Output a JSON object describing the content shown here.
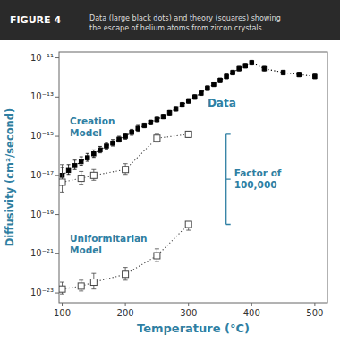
{
  "chart_data": {
    "type": "scatter",
    "title": "FIGURE 4",
    "subtitle": "Data (large black dots) and theory (squares) showing\nthe escape of helium atoms from zircon crystals.",
    "x_label": "Temperature (°C)",
    "y_label": "Diffusivity (cm²/second)",
    "annotations": [
      "Factor of\n100,000"
    ],
    "log": "y",
    "grid": false,
    "xlim": [
      95,
      520
    ],
    "ylim": [
      3.16228e-24,
      1.99526e-11
    ],
    "xticks": [
      100,
      200,
      300,
      400,
      500
    ],
    "yticks": [
      {
        "value": 1e-23,
        "label": "10⁻²³"
      },
      {
        "value": 1e-21,
        "label": "10⁻²¹"
      },
      {
        "value": 1e-19,
        "label": "10⁻¹⁹"
      },
      {
        "value": 1e-17,
        "label": "10⁻¹⁷"
      },
      {
        "value": 1e-15,
        "label": "10⁻¹⁵"
      },
      {
        "value": 1e-13,
        "label": "10⁻¹³"
      },
      {
        "value": 1e-11,
        "label": "10⁻¹¹"
      }
    ],
    "series": [
      {
        "name": "Data",
        "color": "#000000",
        "marker": "square",
        "line_style": "dotted",
        "x": [
          100,
          110,
          120,
          130,
          140,
          150,
          160,
          170,
          180,
          190,
          200,
          210,
          220,
          230,
          240,
          250,
          260,
          270,
          280,
          290,
          300,
          310,
          320,
          330,
          340,
          350,
          360,
          370,
          380,
          390,
          400,
          420,
          450,
          475,
          500
        ],
        "values": [
          1e-17,
          1.77828e-17,
          3.16228e-17,
          5.01187e-17,
          7.94328e-17,
          1.25893e-16,
          1.99526e-16,
          3.16228e-16,
          4.46684e-16,
          7.07946e-16,
          1e-15,
          1.58489e-15,
          2.51189e-15,
          3.54813e-15,
          5.01187e-15,
          7.07946e-15,
          1e-14,
          1.58489e-14,
          2.51189e-14,
          3.98107e-14,
          6.30957e-14,
          1e-13,
          1.58489e-13,
          2.81838e-13,
          4.46684e-13,
          7.07946e-13,
          1.12202e-12,
          1.77828e-12,
          2.81838e-12,
          3.98107e-12,
          5.62341e-12,
          2.81838e-12,
          1.77828e-12,
          1.41254e-12,
          1.12202e-12
        ],
        "errors_low": [
          4.3766e-18,
          6.5626e-18,
          1.167e-17,
          1.7006e-17,
          2.6952e-17,
          4.2716e-17,
          5.8272e-17,
          9.2356e-17,
          1.3046e-16,
          2.0676e-16,
          2.9205e-16,
          4.6287e-16,
          7.3361e-16,
          8.566e-16,
          1.21e-15,
          1.7091e-15,
          2.4142e-15,
          3.8263e-15,
          6.0643e-15,
          9.6112e-15,
          1.5233e-14,
          2.4142e-14,
          3.8263e-14,
          6.8042e-14,
          1.0784e-13,
          1.7091e-13,
          2.7088e-13,
          4.2932e-13,
          6.8042e-13,
          9.6112e-13,
          1.3576e-12,
          6.8042e-13,
          4.2932e-13,
          3.4102e-13,
          2.7088e-13
        ],
        "errors_high": [
          1.5119e-17,
          1.7699e-17,
          2.8633e-17,
          3.9006e-17,
          5.2393e-17,
          7.3634e-17,
          1.0247e-16,
          1.624e-16,
          2.294e-16,
          2.9205e-16,
          4.1254e-16,
          6.5383e-16,
          1.0363e-15,
          1.1292e-15,
          1.5951e-15,
          2.2531e-15,
          3.1826e-15,
          5.044e-15,
          7.9943e-15,
          1.267e-14,
          2.0081e-14,
          3.1826e-14,
          5.044e-14,
          8.9697e-14,
          1.4216e-13,
          2.2531e-13,
          3.5709e-13,
          5.6595e-13,
          8.9697e-13,
          1.267e-12,
          1.7897e-12,
          8.9697e-13,
          5.6595e-13,
          4.4955e-13,
          3.5709e-13
        ]
      },
      {
        "name": "Creation\nModel",
        "color": "#444444",
        "marker": "square-open",
        "line_style": "dotted",
        "x": [
          100,
          130,
          150,
          200,
          250,
          300
        ],
        "values": [
          4.46684e-18,
          7.07946e-18,
          1e-17,
          1.99526e-17,
          7.94328e-16,
          1.25893e-15
        ],
        "errors_low": [
          3.0543e-18,
          3.5313e-18,
          4.3766e-18,
          8.7324e-18,
          2.9314e-16,
          3.6768e-16
        ],
        "errors_high": [
          3.1015e-17,
          8.7695e-18,
          9.9526e-18,
          1.9858e-17,
          4.646e-16,
          5.1936e-16
        ]
      },
      {
        "name": "Uniformitarian\nModel",
        "color": "#444444",
        "marker": "square-open",
        "line_style": "dotted",
        "x": [
          100,
          130,
          150,
          200,
          250,
          300
        ],
        "values": [
          1.58489e-23,
          2.23872e-23,
          3.54813e-23,
          8.91251e-23,
          7.94328e-22,
          3.16228e-20
        ],
        "errors_low": [
          6.9364e-24,
          9.798e-24,
          1.9632e-23,
          4.4457e-23,
          3.9622e-22,
          1.5774e-20
        ],
        "errors_high": [
          1.9632e-23,
          2.2281e-23,
          6.4519e-23,
          1.104e-22,
          9.8395e-22,
          3.9172e-21
        ]
      }
    ]
  }
}
